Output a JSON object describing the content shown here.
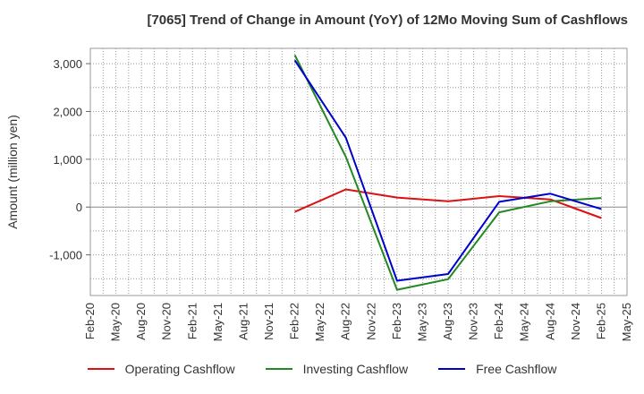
{
  "chart_data": {
    "type": "line",
    "title": "[7065]  Trend of Change in Amount (YoY) of 12Mo Moving Sum of Cashflows",
    "xlabel": "",
    "ylabel": "Amount (million yen)",
    "categories": [
      "Feb-20",
      "May-20",
      "Aug-20",
      "Nov-20",
      "Feb-21",
      "May-21",
      "Aug-21",
      "Nov-21",
      "Feb-22",
      "May-22",
      "Aug-22",
      "Nov-22",
      "Feb-23",
      "May-23",
      "Aug-23",
      "Nov-23",
      "Feb-24",
      "May-24",
      "Aug-24",
      "Nov-24",
      "Feb-25",
      "May-25"
    ],
    "ylim": [
      -1850,
      3320
    ],
    "yticks": [
      -1000,
      0,
      1000,
      2000,
      3000
    ],
    "ytick_labels": [
      "-1,000",
      "0",
      "1,000",
      "2,000",
      "3,000"
    ],
    "grid": true,
    "legend_position": "bottom",
    "series": [
      {
        "name": "Operating Cashflow",
        "color": "#dd1111",
        "values": [
          null,
          null,
          null,
          null,
          null,
          null,
          null,
          null,
          -100,
          null,
          370,
          null,
          200,
          null,
          120,
          null,
          230,
          null,
          160,
          null,
          -230,
          null
        ]
      },
      {
        "name": "Investing Cashflow",
        "color": "#228822",
        "values": [
          null,
          null,
          null,
          null,
          null,
          null,
          null,
          null,
          3180,
          null,
          1050,
          null,
          -1730,
          null,
          -1510,
          null,
          -110,
          null,
          120,
          null,
          190,
          null
        ]
      },
      {
        "name": "Free Cashflow",
        "color": "#0000cc",
        "values": [
          null,
          null,
          null,
          null,
          null,
          null,
          null,
          null,
          3070,
          null,
          1450,
          null,
          -1540,
          null,
          -1400,
          null,
          110,
          null,
          280,
          null,
          -40,
          null
        ]
      }
    ]
  }
}
